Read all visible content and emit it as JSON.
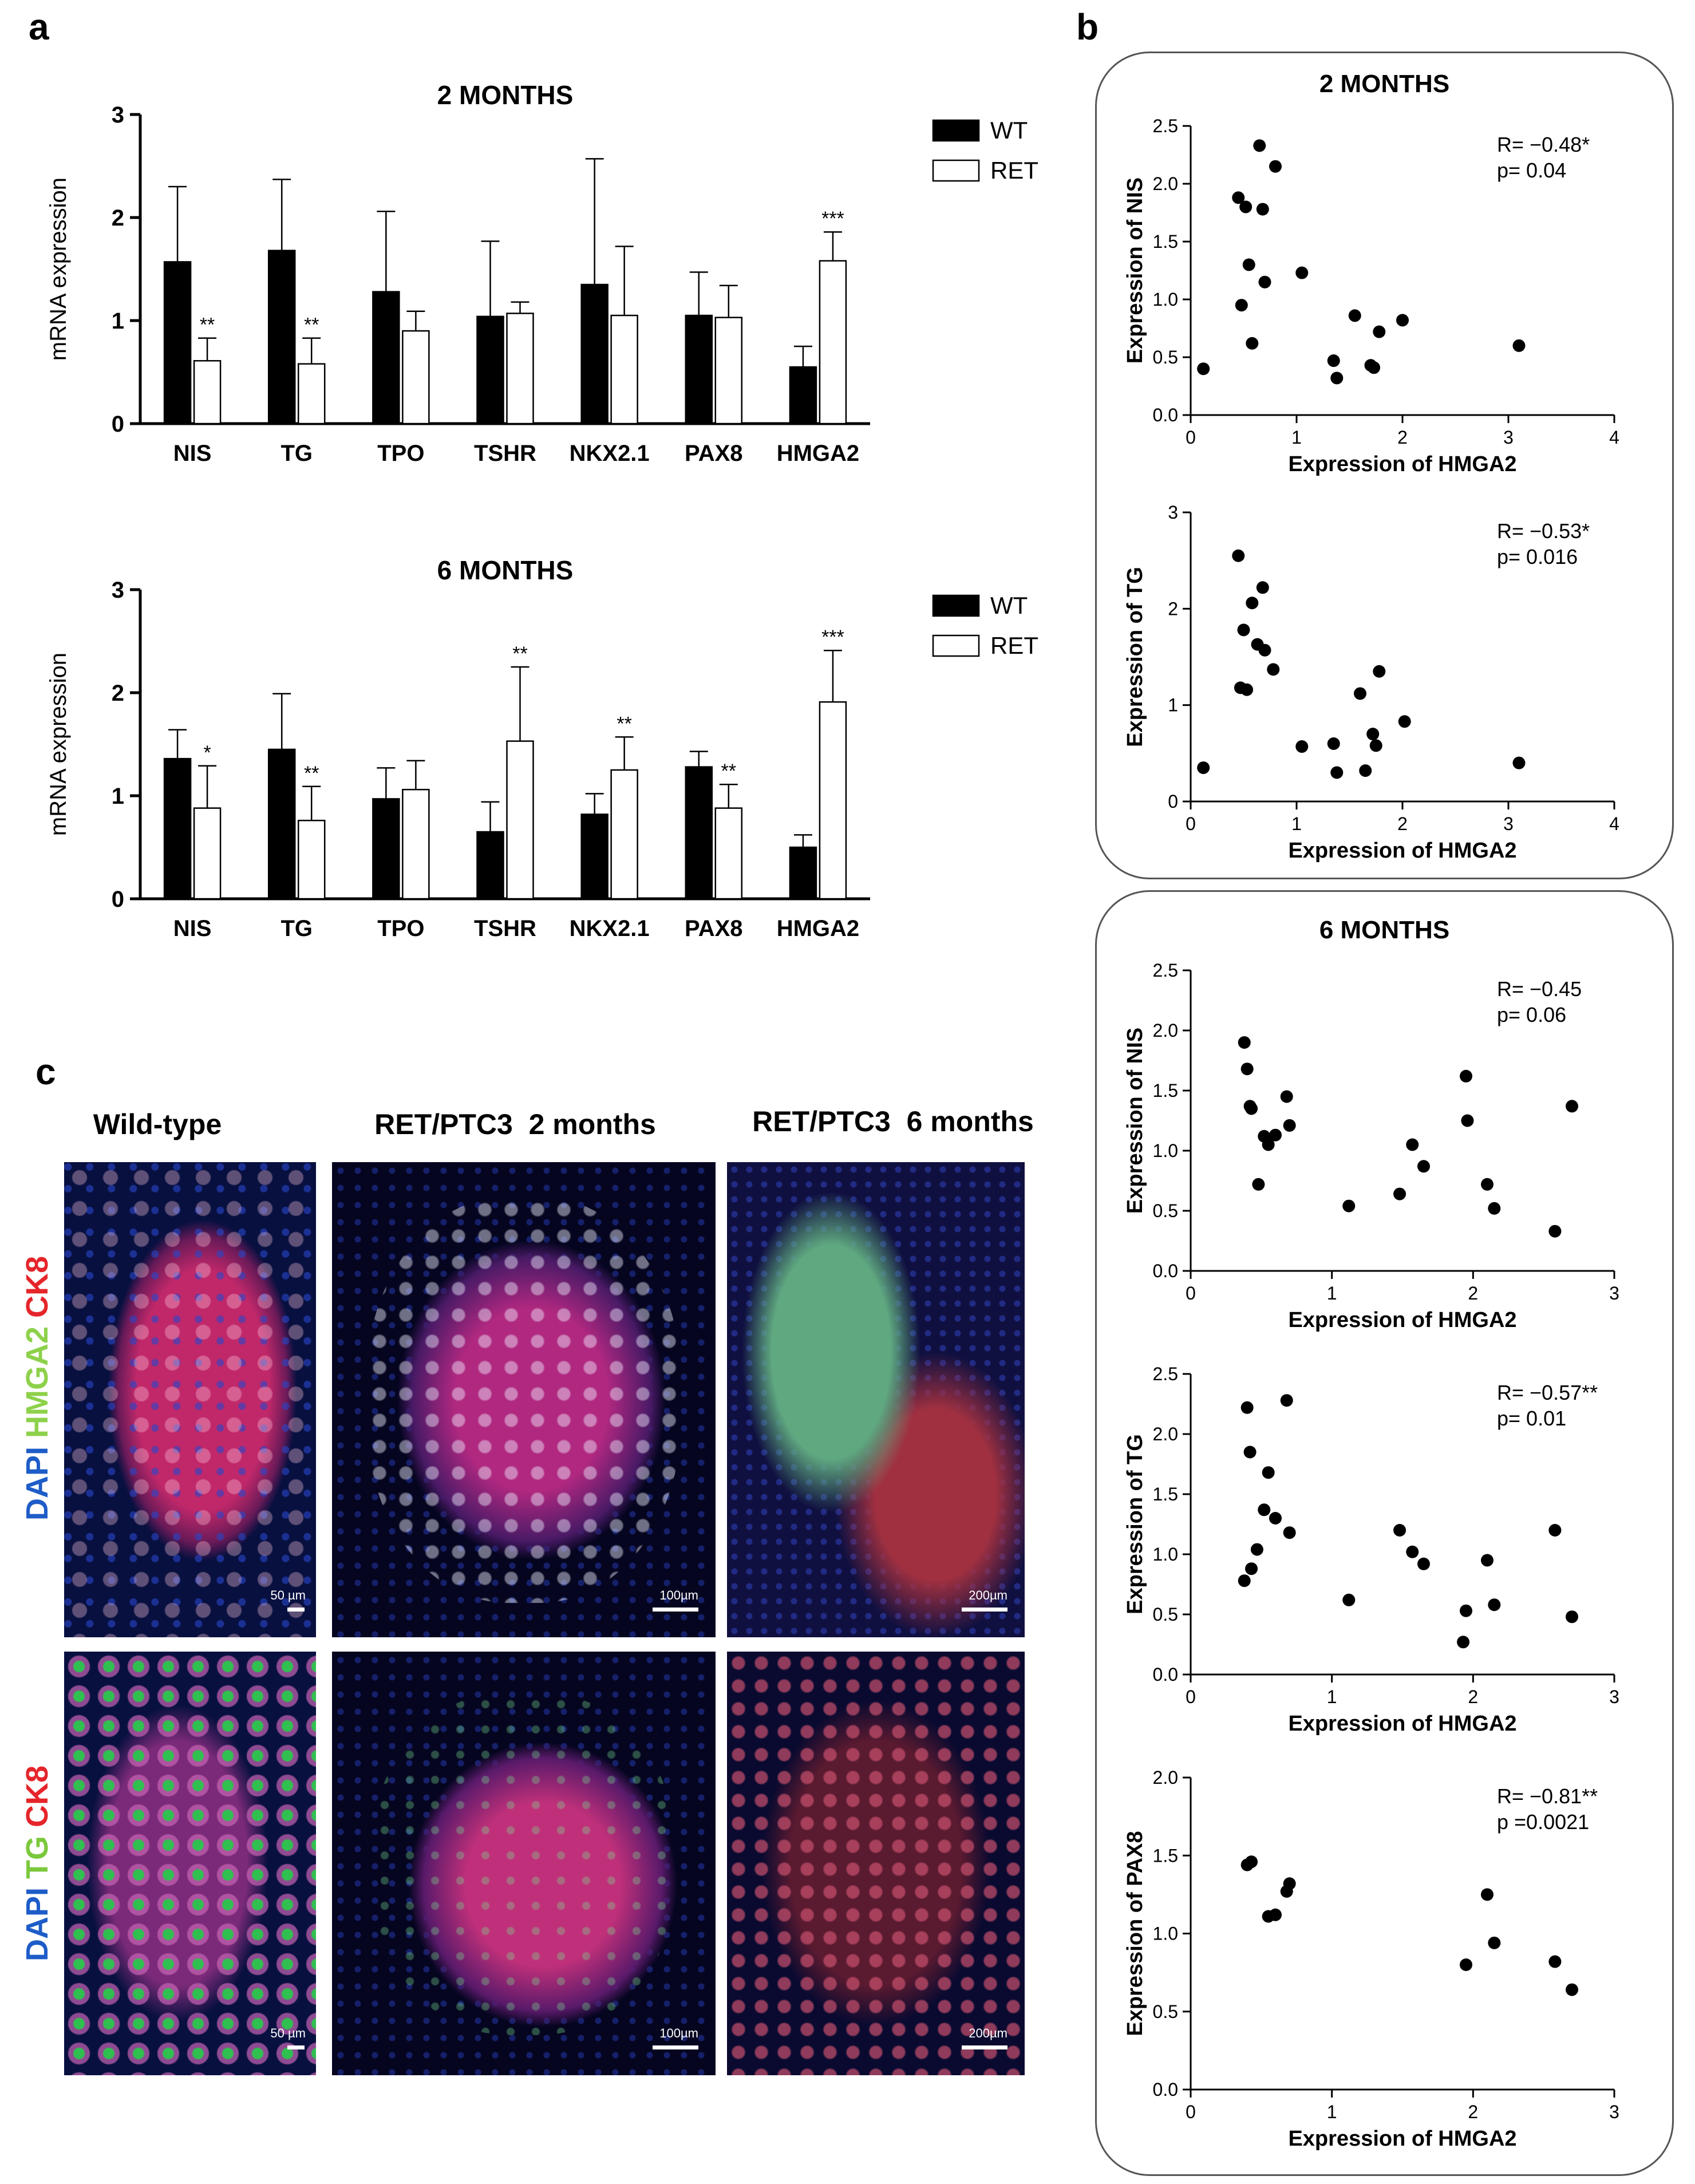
{
  "panel_labels": {
    "a": "a",
    "b": "b",
    "c": "c"
  },
  "colors": {
    "wt": "#000000",
    "ret": "#ffffff",
    "dapi": "#1e5cc8",
    "hmga2": "#8dd14a",
    "tg": "#7cc83c",
    "ck8": "#e5252a",
    "frame": "#555555"
  },
  "chart_data": [
    {
      "id": "bar-2m",
      "type": "bar",
      "title": "2 MONTHS",
      "ylabel": "mRNA expression",
      "xlabel": "",
      "ylim": [
        0,
        3
      ],
      "yticks": [
        0,
        1,
        2,
        3
      ],
      "categories": [
        "NIS",
        "TG",
        "TPO",
        "TSHR",
        "NKX2.1",
        "PAX8",
        "HMGA2"
      ],
      "legend": [
        "WT",
        "RET"
      ],
      "series": [
        {
          "name": "WT",
          "values": [
            1.57,
            1.68,
            1.28,
            1.04,
            1.35,
            1.05,
            0.55
          ],
          "errors": [
            0.73,
            0.69,
            0.78,
            0.73,
            1.22,
            0.42,
            0.2
          ]
        },
        {
          "name": "RET",
          "values": [
            0.61,
            0.58,
            0.9,
            1.07,
            1.05,
            1.03,
            1.58
          ],
          "errors": [
            0.22,
            0.25,
            0.19,
            0.11,
            0.67,
            0.31,
            0.28
          ]
        }
      ],
      "significance": [
        "**",
        "**",
        "",
        "",
        "",
        "",
        "***"
      ]
    },
    {
      "id": "bar-6m",
      "type": "bar",
      "title": "6 MONTHS",
      "ylabel": "mRNA expression",
      "xlabel": "",
      "ylim": [
        0,
        3
      ],
      "yticks": [
        0,
        1,
        2,
        3
      ],
      "categories": [
        "NIS",
        "TG",
        "TPO",
        "TSHR",
        "NKX2.1",
        "PAX8",
        "HMGA2"
      ],
      "legend": [
        "WT",
        "RET"
      ],
      "series": [
        {
          "name": "WT",
          "values": [
            1.36,
            1.45,
            0.97,
            0.65,
            0.82,
            1.28,
            0.5
          ],
          "errors": [
            0.28,
            0.54,
            0.3,
            0.29,
            0.2,
            0.15,
            0.12
          ]
        },
        {
          "name": "RET",
          "values": [
            0.88,
            0.76,
            1.06,
            1.53,
            1.25,
            0.88,
            1.91
          ],
          "errors": [
            0.41,
            0.33,
            0.28,
            0.72,
            0.32,
            0.23,
            0.5
          ]
        }
      ],
      "significance": [
        "*",
        "**",
        "",
        "**",
        "**",
        "**",
        "***"
      ]
    },
    {
      "id": "sc-2m-nis",
      "type": "scatter",
      "group_title": "2 MONTHS",
      "xlabel": "Expression of HMGA2",
      "ylabel": "Expression of NIS",
      "xlim": [
        0,
        4
      ],
      "ylim": [
        0,
        2.5
      ],
      "xticks": [
        0,
        1,
        2,
        3,
        4
      ],
      "yticks": [
        0.0,
        0.5,
        1.0,
        1.5,
        2.0,
        2.5
      ],
      "stat_r": "R= −0.48*",
      "stat_p": "p= 0.04",
      "points": [
        [
          0.12,
          0.4
        ],
        [
          0.45,
          1.88
        ],
        [
          0.48,
          0.95
        ],
        [
          0.52,
          1.8
        ],
        [
          0.55,
          1.3
        ],
        [
          0.58,
          0.62
        ],
        [
          0.65,
          2.33
        ],
        [
          0.68,
          1.78
        ],
        [
          0.7,
          1.15
        ],
        [
          0.8,
          2.15
        ],
        [
          1.05,
          1.23
        ],
        [
          1.35,
          0.47
        ],
        [
          1.38,
          0.32
        ],
        [
          1.55,
          0.86
        ],
        [
          1.7,
          0.43
        ],
        [
          1.73,
          0.41
        ],
        [
          1.78,
          0.72
        ],
        [
          2.0,
          0.82
        ],
        [
          3.1,
          0.6
        ]
      ]
    },
    {
      "id": "sc-2m-tg",
      "type": "scatter",
      "group_title": "2 MONTHS",
      "xlabel": "Expression of HMGA2",
      "ylabel": "Expression of TG",
      "xlim": [
        0,
        4
      ],
      "ylim": [
        0,
        3
      ],
      "xticks": [
        0,
        1,
        2,
        3,
        4
      ],
      "yticks": [
        0,
        1,
        2,
        3
      ],
      "stat_r": "R= −0.53*",
      "stat_p": "p= 0.016",
      "points": [
        [
          0.12,
          0.35
        ],
        [
          0.45,
          2.55
        ],
        [
          0.47,
          1.18
        ],
        [
          0.5,
          1.78
        ],
        [
          0.53,
          1.16
        ],
        [
          0.58,
          2.06
        ],
        [
          0.63,
          1.63
        ],
        [
          0.68,
          2.22
        ],
        [
          0.7,
          1.57
        ],
        [
          0.78,
          1.37
        ],
        [
          1.05,
          0.57
        ],
        [
          1.35,
          0.6
        ],
        [
          1.38,
          0.3
        ],
        [
          1.6,
          1.12
        ],
        [
          1.65,
          0.32
        ],
        [
          1.72,
          0.7
        ],
        [
          1.75,
          0.58
        ],
        [
          1.78,
          1.35
        ],
        [
          2.02,
          0.83
        ],
        [
          3.1,
          0.4
        ]
      ]
    },
    {
      "id": "sc-6m-nis",
      "type": "scatter",
      "group_title": "6 MONTHS",
      "xlabel": "Expression of HMGA2",
      "ylabel": "Expression of NIS",
      "xlim": [
        0,
        3
      ],
      "ylim": [
        0,
        2.5
      ],
      "xticks": [
        0,
        1,
        2,
        3
      ],
      "yticks": [
        0.0,
        0.5,
        1.0,
        1.5,
        2.0,
        2.5
      ],
      "stat_r": "R= −0.45",
      "stat_p": "p= 0.06",
      "points": [
        [
          0.38,
          1.9
        ],
        [
          0.4,
          1.68
        ],
        [
          0.42,
          1.37
        ],
        [
          0.43,
          1.35
        ],
        [
          0.48,
          0.72
        ],
        [
          0.52,
          1.12
        ],
        [
          0.55,
          1.05
        ],
        [
          0.6,
          1.13
        ],
        [
          0.68,
          1.45
        ],
        [
          0.7,
          1.21
        ],
        [
          1.12,
          0.54
        ],
        [
          1.48,
          0.64
        ],
        [
          1.57,
          1.05
        ],
        [
          1.65,
          0.87
        ],
        [
          1.95,
          1.62
        ],
        [
          1.96,
          1.25
        ],
        [
          2.1,
          0.72
        ],
        [
          2.15,
          0.52
        ],
        [
          2.58,
          0.33
        ],
        [
          2.7,
          1.37
        ]
      ]
    },
    {
      "id": "sc-6m-tg",
      "type": "scatter",
      "group_title": "6 MONTHS",
      "xlabel": "Expression of HMGA2",
      "ylabel": "Expression of TG",
      "xlim": [
        0,
        3
      ],
      "ylim": [
        0,
        2.5
      ],
      "xticks": [
        0,
        1,
        2,
        3
      ],
      "yticks": [
        0.0,
        0.5,
        1.0,
        1.5,
        2.0,
        2.5
      ],
      "stat_r": "R= −0.57**",
      "stat_p": "p= 0.01",
      "points": [
        [
          0.38,
          0.78
        ],
        [
          0.4,
          2.22
        ],
        [
          0.42,
          1.85
        ],
        [
          0.43,
          0.88
        ],
        [
          0.47,
          1.04
        ],
        [
          0.52,
          1.37
        ],
        [
          0.55,
          1.68
        ],
        [
          0.6,
          1.3
        ],
        [
          0.68,
          2.28
        ],
        [
          0.7,
          1.18
        ],
        [
          1.12,
          0.62
        ],
        [
          1.48,
          1.2
        ],
        [
          1.57,
          1.02
        ],
        [
          1.65,
          0.92
        ],
        [
          1.93,
          0.27
        ],
        [
          1.95,
          0.53
        ],
        [
          2.1,
          0.95
        ],
        [
          2.15,
          0.58
        ],
        [
          2.58,
          1.2
        ],
        [
          2.7,
          0.48
        ]
      ]
    },
    {
      "id": "sc-6m-pax8",
      "type": "scatter",
      "group_title": "6 MONTHS",
      "xlabel": "Expression of HMGA2",
      "ylabel": "Expression of PAX8",
      "xlim": [
        0,
        3
      ],
      "ylim": [
        0,
        2.0
      ],
      "xticks": [
        0,
        1,
        2,
        3
      ],
      "yticks": [
        0.0,
        0.5,
        1.0,
        1.5,
        2.0
      ],
      "stat_r": "R= −0.81**",
      "stat_p": "p =0.0021",
      "points": [
        [
          0.4,
          1.44
        ],
        [
          0.43,
          1.46
        ],
        [
          0.55,
          1.11
        ],
        [
          0.6,
          1.12
        ],
        [
          0.68,
          1.27
        ],
        [
          0.7,
          1.32
        ],
        [
          1.95,
          0.8
        ],
        [
          2.1,
          1.25
        ],
        [
          2.15,
          0.94
        ],
        [
          2.58,
          0.82
        ],
        [
          2.7,
          0.64
        ]
      ]
    }
  ],
  "panel_c": {
    "columns": [
      "Wild-type",
      "RET/PTC3  2 months",
      "RET/PTC3  6 months"
    ],
    "row1_stain": {
      "dapi": "DAPI",
      "marker": "HMGA2",
      "ck8": "CK8"
    },
    "row2_stain": {
      "dapi": "DAPI",
      "marker": "TG",
      "ck8": "CK8"
    },
    "scale_bars": [
      "50 µm",
      "100µm",
      "200µm",
      "50 µm",
      "100µm",
      "200µm"
    ]
  }
}
